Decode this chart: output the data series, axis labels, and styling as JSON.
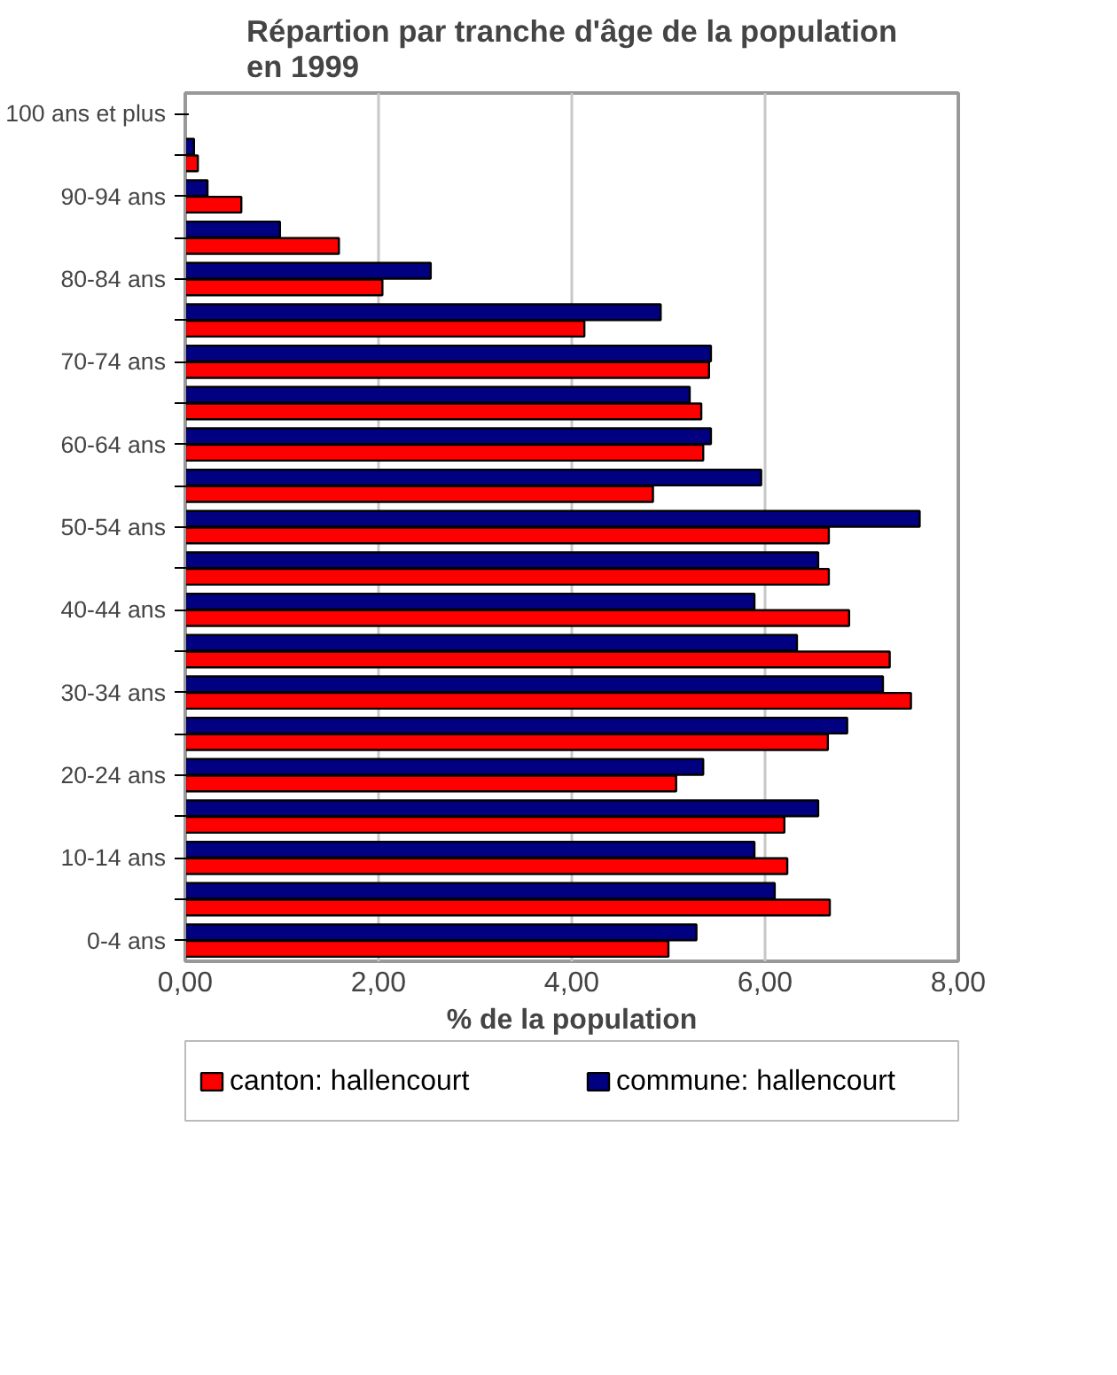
{
  "chart_data": {
    "type": "bar",
    "orientation": "horizontal",
    "title": "Répartion par tranche d'âge de la population en 1999",
    "xlabel": "% de la population",
    "categories": [
      "100 ans et plus",
      null,
      "90-94 ans",
      null,
      "80-84 ans",
      null,
      "70-74 ans",
      null,
      "60-64 ans",
      null,
      "50-54 ans",
      null,
      "40-44 ans",
      null,
      "30-34 ans",
      null,
      "20-24 ans",
      null,
      "10-14 ans",
      null,
      "0-4 ans"
    ],
    "series": [
      {
        "name": "canton: hallencourt",
        "color": "#ff0000",
        "values": [
          null,
          0.13,
          0.58,
          1.59,
          2.04,
          4.13,
          5.42,
          5.34,
          5.36,
          4.84,
          6.66,
          6.66,
          6.87,
          7.29,
          7.51,
          6.65,
          5.08,
          6.2,
          6.23,
          6.67,
          5.0
        ]
      },
      {
        "name": "commune: hallencourt",
        "color": "#000080",
        "values": [
          null,
          0.09,
          0.23,
          0.98,
          2.54,
          4.92,
          5.44,
          5.22,
          5.44,
          5.96,
          7.6,
          6.55,
          5.89,
          6.33,
          7.22,
          6.85,
          5.36,
          6.55,
          5.89,
          6.1,
          5.29
        ]
      }
    ],
    "xlim": [
      0,
      8
    ],
    "xticks": [
      {
        "value": 0,
        "label": "0,00"
      },
      {
        "value": 2,
        "label": "2,00"
      },
      {
        "value": 4,
        "label": "4,00"
      },
      {
        "value": 6,
        "label": "6,00"
      },
      {
        "value": 8,
        "label": "8,00"
      }
    ],
    "grid": "x",
    "legend": "bottom"
  }
}
